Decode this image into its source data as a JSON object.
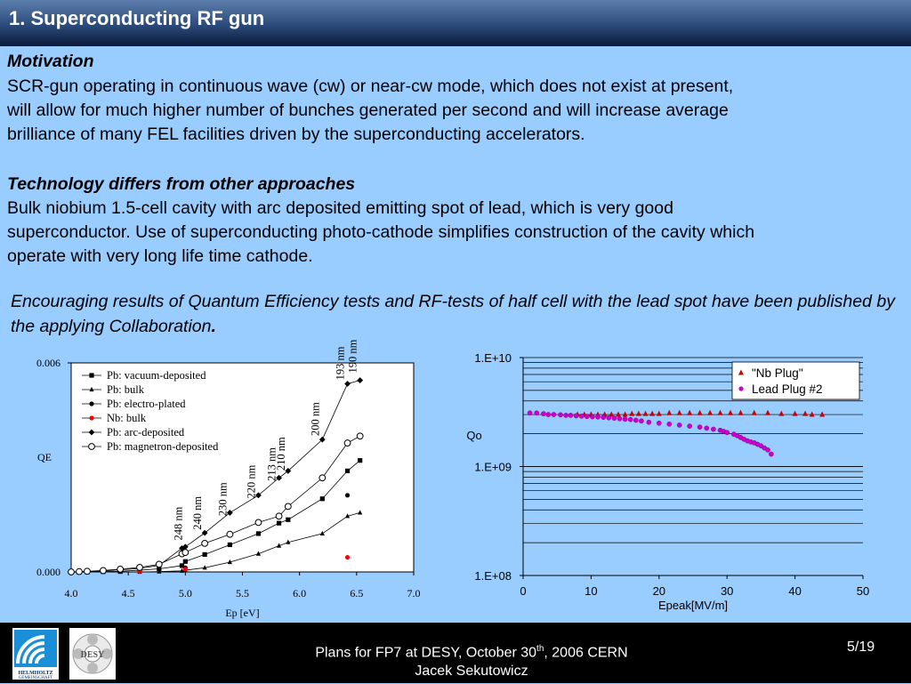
{
  "title": "1. Superconducting RF gun",
  "motivation": {
    "heading": "Motivation",
    "lines": [
      "SCR-gun operating in continuous wave (cw) or near-cw mode, which does not exist at present,",
      "will  allow for much higher number of bunches generated per second and will increase average",
      "brilliance of many FEL facilities driven by the superconducting accelerators."
    ]
  },
  "technology": {
    "heading": "Technology differs from other approaches",
    "lines": [
      "Bulk niobium 1.5-cell cavity with arc deposited emitting spot of lead, which is very good",
      "superconductor. Use of superconducting photo-cathode simplifies construction of the cavity which",
      "operate with very long life time cathode."
    ]
  },
  "encouraging": {
    "text": "Encouraging results of Quantum Efficiency tests and RF-tests of half cell with the lead spot have been published by the applying Collaboration",
    "end": "."
  },
  "footer": {
    "line1_pre": "Plans for FP7 at DESY, October 30",
    "line1_sup": "th",
    "line1_post": ", 2006 CERN",
    "line2": "Jacek Sekutowicz",
    "page": "5/19",
    "logo1_text": "HELMHOLTZ GEMEINSCHAFT",
    "logo2_text": "DESY"
  },
  "chart_data": [
    {
      "type": "line",
      "xlabel": "Ep [eV]",
      "ylabel": "QE",
      "xlim": [
        4.0,
        7.0
      ],
      "ylim": [
        0.0,
        0.006
      ],
      "x_ticks": [
        "4.0",
        "4.5",
        "5.0",
        "5.5",
        "6.0",
        "6.5",
        "7.0"
      ],
      "y_ticks": [
        "0.000",
        "0.006"
      ],
      "legend": "top-left",
      "annotations": [
        {
          "text": "248 nm",
          "x": 5.0
        },
        {
          "text": "240 nm",
          "x": 5.17
        },
        {
          "text": "230 nm",
          "x": 5.39
        },
        {
          "text": "220 nm",
          "x": 5.64
        },
        {
          "text": "213 nm",
          "x": 5.82
        },
        {
          "text": "210 nm",
          "x": 5.9
        },
        {
          "text": "200 nm",
          "x": 6.2
        },
        {
          "text": "193 nm",
          "x": 6.42
        },
        {
          "text": "190 nm",
          "x": 6.53
        }
      ],
      "series": [
        {
          "name": "Pb: vacuum-deposited",
          "marker": "square",
          "color": "#000000",
          "x": [
            4.0,
            4.07,
            4.14,
            4.28,
            4.43,
            4.6,
            4.77,
            4.97,
            5.0,
            5.17,
            5.39,
            5.64,
            5.82,
            5.9,
            6.2,
            6.42,
            6.53
          ],
          "y": [
            0.0,
            0.0,
            0.0,
            1e-05,
            2e-05,
            5e-05,
            9e-05,
            0.00018,
            0.0003,
            0.0005,
            0.00078,
            0.0011,
            0.0014,
            0.0015,
            0.0021,
            0.0029,
            0.0032
          ]
        },
        {
          "name": "Pb: bulk",
          "marker": "triangle",
          "color": "#000000",
          "x": [
            4.0,
            4.07,
            4.14,
            4.28,
            4.43,
            4.6,
            4.77,
            4.97,
            5.0,
            5.17,
            5.39,
            5.64,
            5.82,
            5.9,
            6.2,
            6.42,
            6.53
          ],
          "y": [
            0.0,
            0.0,
            0.0,
            0.0,
            0.0,
            0.0,
            1e-05,
            3e-05,
            5e-05,
            0.00012,
            0.00028,
            0.00052,
            0.00075,
            0.00085,
            0.0011,
            0.0016,
            0.0017
          ]
        },
        {
          "name": "Pb: electro-plated",
          "marker": "circle",
          "color": "#000000",
          "x": [
            5.0,
            6.42
          ],
          "y": [
            0.00012,
            0.0022
          ]
        },
        {
          "name": "Nb: bulk",
          "marker": "circle",
          "color": "#ff0000",
          "x": [
            4.6,
            5.0,
            6.42
          ],
          "y": [
            2e-05,
            8e-05,
            0.00042
          ]
        },
        {
          "name": "Pb: arc-deposited",
          "marker": "diamond",
          "color": "#000000",
          "x": [
            4.0,
            4.07,
            4.14,
            4.28,
            4.43,
            4.6,
            4.77,
            4.97,
            5.0,
            5.17,
            5.39,
            5.64,
            5.82,
            5.9,
            6.2,
            6.42,
            6.53
          ],
          "y": [
            0.0,
            0.0,
            1e-05,
            3e-05,
            6e-05,
            0.0001,
            0.00019,
            0.00068,
            0.00072,
            0.00112,
            0.0017,
            0.0022,
            0.0027,
            0.0029,
            0.0038,
            0.0054,
            0.0055
          ]
        },
        {
          "name": "Pb: magnetron-deposited",
          "marker": "open-circle",
          "color": "#000000",
          "x": [
            4.0,
            4.07,
            4.14,
            4.28,
            4.43,
            4.6,
            4.77,
            4.97,
            5.0,
            5.17,
            5.39,
            5.64,
            5.82,
            5.9,
            6.2,
            6.42,
            6.53
          ],
          "y": [
            0.0,
            1e-05,
            2e-05,
            4e-05,
            8e-05,
            0.00013,
            0.00022,
            0.00052,
            0.00056,
            0.00082,
            0.00108,
            0.00142,
            0.0016,
            0.00188,
            0.0027,
            0.0037,
            0.0039
          ]
        }
      ]
    },
    {
      "type": "scatter",
      "xlabel": "Epeak[MV/m]",
      "ylabel": "Qo",
      "xlim": [
        0,
        50
      ],
      "ylim": [
        100000000,
        10000000000
      ],
      "y_scale": "log",
      "x_ticks": [
        "0",
        "10",
        "20",
        "30",
        "40",
        "50"
      ],
      "y_ticks": [
        "1.E+08",
        "1.E+09",
        "1.E+10"
      ],
      "legend": "top-right",
      "series": [
        {
          "name": "\"Nb Plug\"",
          "marker": "triangle",
          "color": "#cc0000",
          "x": [
            8,
            9,
            10,
            11,
            12,
            13,
            14,
            15,
            16,
            17,
            18,
            19,
            20,
            21.5,
            23,
            24.5,
            26,
            27.5,
            29,
            30.5,
            32,
            34,
            36,
            38,
            40,
            41.5,
            42.5,
            44
          ],
          "y": [
            3000000000.0,
            3000000000.0,
            3000000000.0,
            3000000000.0,
            3000000000.0,
            3000000000.0,
            3000000000.0,
            3000000000.0,
            3050000000.0,
            3050000000.0,
            3050000000.0,
            3050000000.0,
            3050000000.0,
            3100000000.0,
            3100000000.0,
            3100000000.0,
            3100000000.0,
            3100000000.0,
            3100000000.0,
            3100000000.0,
            3100000000.0,
            3100000000.0,
            3100000000.0,
            3050000000.0,
            3050000000.0,
            3050000000.0,
            3000000000.0,
            3000000000.0
          ]
        },
        {
          "name": "Lead Plug #2",
          "marker": "circle",
          "color": "#cc00cc",
          "x": [
            1,
            2,
            3,
            3.7,
            4.5,
            5.5,
            6.3,
            7,
            7.8,
            8.6,
            9.4,
            10.2,
            11,
            11.8,
            12.6,
            13.4,
            14.2,
            15,
            15.8,
            16.6,
            17.4,
            18.5,
            20,
            21.5,
            23,
            24.5,
            26,
            27,
            28,
            29,
            29.5,
            30,
            31,
            31.5,
            32,
            32.5,
            33,
            33.5,
            34,
            34.5,
            35,
            35.5,
            36,
            36.5
          ],
          "y": [
            3100000000.0,
            3100000000.0,
            3050000000.0,
            3000000000.0,
            3000000000.0,
            2980000000.0,
            2950000000.0,
            2950000000.0,
            2920000000.0,
            2900000000.0,
            2880000000.0,
            2860000000.0,
            2850000000.0,
            2830000000.0,
            2800000000.0,
            2780000000.0,
            2750000000.0,
            2720000000.0,
            2700000000.0,
            2660000000.0,
            2620000000.0,
            2550000000.0,
            2500000000.0,
            2450000000.0,
            2400000000.0,
            2350000000.0,
            2300000000.0,
            2250000000.0,
            2200000000.0,
            2150000000.0,
            2100000000.0,
            2050000000.0,
            1980000000.0,
            1920000000.0,
            1850000000.0,
            1780000000.0,
            1720000000.0,
            1680000000.0,
            1650000000.0,
            1600000000.0,
            1550000000.0,
            1480000000.0,
            1420000000.0,
            1300000000.0
          ]
        }
      ]
    }
  ]
}
